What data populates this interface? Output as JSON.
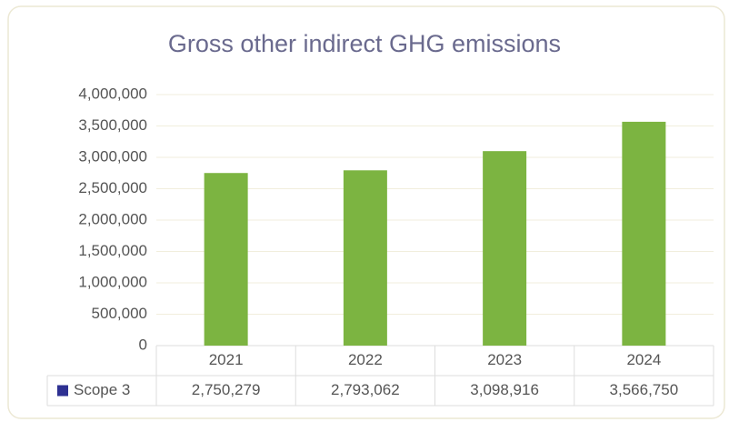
{
  "chart_data": {
    "type": "bar",
    "title": "Gross other indirect GHG emissions",
    "categories": [
      "2021",
      "2022",
      "2023",
      "2024"
    ],
    "series": [
      {
        "name": "Scope 3",
        "color": "#7cb441",
        "legend_color": "#2e3192",
        "values": [
          2750279,
          2793062,
          3098916,
          3566750
        ],
        "value_labels": [
          "2,750,279",
          "2,793,062",
          "3,098,916",
          "3,566,750"
        ]
      }
    ],
    "ylim": [
      0,
      4000000
    ],
    "yticks": [
      0,
      {
        "value": 500000,
        "label": "500,000"
      },
      {
        "value": 1000000,
        "label": "1,000,000"
      },
      {
        "value": 1500000,
        "label": "1,500,000"
      },
      {
        "value": 2000000,
        "label": "2,000,000"
      },
      {
        "value": 2500000,
        "label": "2,500,000"
      },
      {
        "value": 3000000,
        "label": "3,000,000"
      },
      {
        "value": 3500000,
        "label": "3,500,000"
      },
      {
        "value": 4000000,
        "label": "4,000,000"
      }
    ],
    "grid": true,
    "data_table": true
  }
}
